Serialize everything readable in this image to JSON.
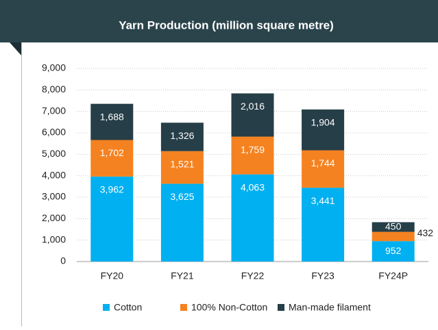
{
  "chart_data": {
    "type": "stacked_bar",
    "title": "Yarn Production (million square metre)",
    "categories": [
      "FY20",
      "FY21",
      "FY22",
      "FY23",
      "FY24P"
    ],
    "series": [
      {
        "name": "Cotton",
        "color": "#00b0f0",
        "values": [
          3962,
          3625,
          4063,
          3441,
          952
        ],
        "value_labels": [
          "3,962",
          "3,625",
          "4,063",
          "3,441",
          "952"
        ]
      },
      {
        "name": "100% Non-Cotton",
        "color": "#f58220",
        "values": [
          1702,
          1521,
          1759,
          1744,
          432
        ],
        "value_labels": [
          "1,702",
          "1,521",
          "1,759",
          "1,744",
          "432"
        ]
      },
      {
        "name": "Man-made filament",
        "color": "#263e47",
        "values": [
          1688,
          1326,
          2016,
          1904,
          450
        ],
        "value_labels": [
          "1,688",
          "1,326",
          "2,016",
          "1,904",
          "450"
        ]
      }
    ],
    "ylim": [
      0,
      9000
    ],
    "yticks": [
      0,
      {
        "value": 1000,
        "label": "1,000"
      },
      {
        "value": 2000,
        "label": "2,000"
      },
      {
        "value": 3000,
        "label": "3,000"
      },
      {
        "value": 4000,
        "label": "4,000"
      },
      {
        "value": 5000,
        "label": "5,000"
      },
      {
        "value": 6000,
        "label": "6,000"
      },
      {
        "value": 7000,
        "label": "7,000"
      },
      {
        "value": 8000,
        "label": "8,000"
      },
      {
        "value": 9000,
        "label": "9,000"
      }
    ],
    "grid": true,
    "legend": "bottom"
  }
}
